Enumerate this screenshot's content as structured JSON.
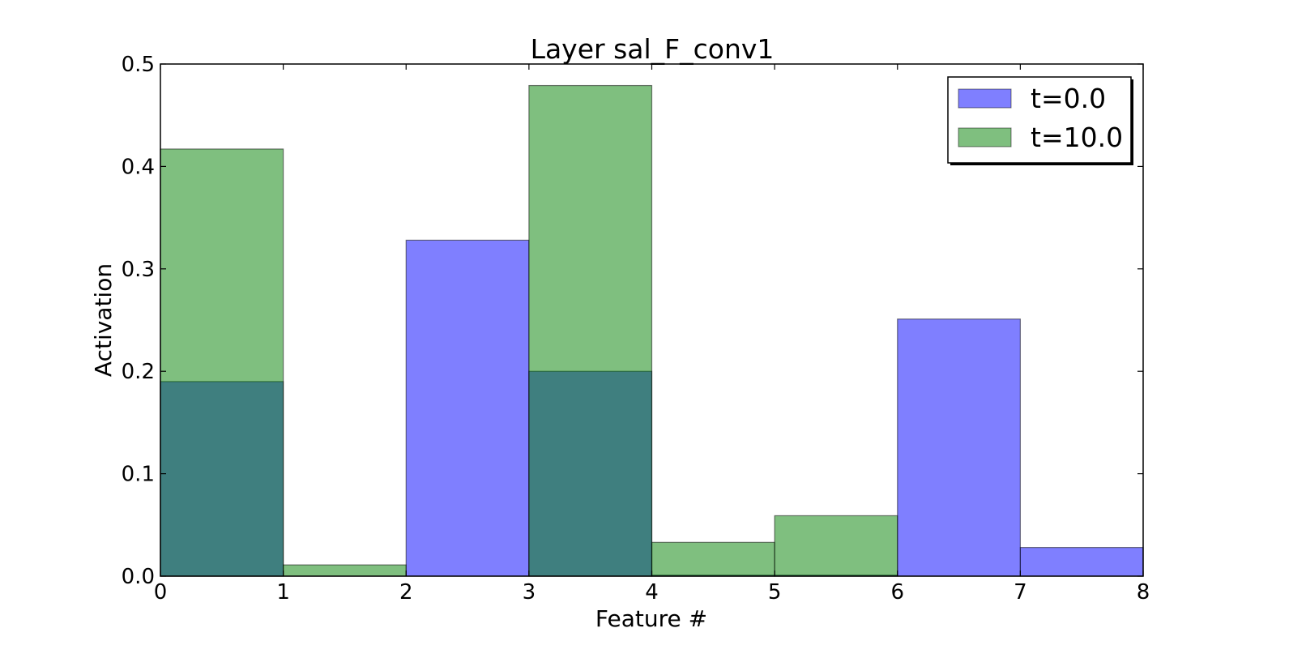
{
  "chart_data": {
    "type": "bar",
    "title": "Layer sal_F_conv1",
    "xlabel": "Feature #",
    "ylabel": "Activation",
    "xlim": [
      0,
      8
    ],
    "ylim": [
      0,
      0.5
    ],
    "x": [
      0,
      1,
      2,
      3,
      4,
      5,
      6,
      7
    ],
    "bar_width": 1,
    "xticks": [
      "0",
      "1",
      "2",
      "3",
      "4",
      "5",
      "6",
      "7",
      "8"
    ],
    "yticks": [
      "0.0",
      "0.1",
      "0.2",
      "0.3",
      "0.4",
      "0.5"
    ],
    "grid": false,
    "legend_position": "top-right",
    "series": [
      {
        "name": "t=0.0",
        "color": "#0000ff",
        "opacity": 0.5,
        "values": [
          0.19,
          0.0,
          0.328,
          0.2,
          0.001,
          0.001,
          0.251,
          0.028
        ]
      },
      {
        "name": "t=10.0",
        "color": "#008000",
        "opacity": 0.5,
        "values": [
          0.417,
          0.011,
          0.0,
          0.479,
          0.033,
          0.059,
          0.0,
          0.0
        ]
      }
    ]
  }
}
